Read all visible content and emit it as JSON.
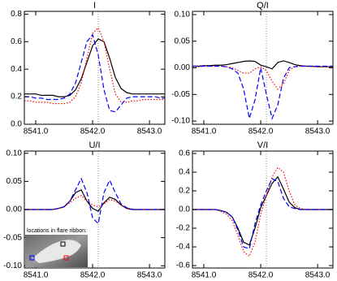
{
  "chart_data": [
    {
      "type": "line",
      "title": "I",
      "x": [
        8540.8,
        8540.9,
        8541.0,
        8541.1,
        8541.2,
        8541.3,
        8541.4,
        8541.5,
        8541.6,
        8541.7,
        8541.8,
        8541.9,
        8542.0,
        8542.1,
        8542.2,
        8542.3,
        8542.4,
        8542.5,
        8542.6,
        8542.7,
        8542.8,
        8542.9,
        8543.0,
        8543.1,
        8543.2,
        8543.3
      ],
      "series": [
        {
          "color": "#000000",
          "dash": "solid",
          "values": [
            0.22,
            0.22,
            0.22,
            0.21,
            0.21,
            0.21,
            0.2,
            0.2,
            0.21,
            0.25,
            0.33,
            0.45,
            0.57,
            0.62,
            0.6,
            0.48,
            0.34,
            0.26,
            0.23,
            0.22,
            0.22,
            0.22,
            0.22,
            0.22,
            0.22,
            0.22
          ]
        },
        {
          "color": "#ff0000",
          "dash": "dotted",
          "values": [
            0.17,
            0.17,
            0.16,
            0.16,
            0.16,
            0.15,
            0.15,
            0.15,
            0.16,
            0.2,
            0.3,
            0.48,
            0.66,
            0.7,
            0.6,
            0.4,
            0.22,
            0.16,
            0.16,
            0.17,
            0.17,
            0.18,
            0.18,
            0.18,
            0.18,
            0.18
          ]
        },
        {
          "color": "#0000ff",
          "dash": "dashed",
          "values": [
            0.2,
            0.2,
            0.19,
            0.19,
            0.18,
            0.18,
            0.18,
            0.19,
            0.22,
            0.3,
            0.45,
            0.6,
            0.65,
            0.5,
            0.25,
            0.1,
            0.09,
            0.14,
            0.19,
            0.2,
            0.2,
            0.2,
            0.2,
            0.2,
            0.19,
            0.19
          ]
        }
      ],
      "xlim": [
        8540.8,
        8543.27
      ],
      "xticks": [
        {
          "value": 8541,
          "label": "8541.0"
        },
        {
          "value": 8542,
          "label": "8542.0"
        },
        {
          "value": 8543,
          "label": "8543.0"
        }
      ],
      "ylim": [
        0,
        0.82
      ],
      "yticks": [
        {
          "value": 0,
          "label": "0.0"
        },
        {
          "value": 0.2,
          "label": "0.2"
        },
        {
          "value": 0.4,
          "label": "0.4"
        },
        {
          "value": 0.6,
          "label": "0.6"
        },
        {
          "value": 0.8,
          "label": "0.8"
        }
      ],
      "vline": 8542.1
    },
    {
      "type": "line",
      "title": "Q/I",
      "x": [
        8540.8,
        8540.9,
        8541.0,
        8541.1,
        8541.2,
        8541.3,
        8541.4,
        8541.5,
        8541.6,
        8541.7,
        8541.8,
        8541.9,
        8542.0,
        8542.1,
        8542.2,
        8542.3,
        8542.4,
        8542.5,
        8542.6,
        8542.7,
        8542.8,
        8542.9,
        8543.0,
        8543.1,
        8543.2,
        8543.3
      ],
      "series": [
        {
          "color": "#000000",
          "dash": "solid",
          "values": [
            0.003,
            0.003,
            0.004,
            0.004,
            0.005,
            0.005,
            0.006,
            0.008,
            0.01,
            0.012,
            0.013,
            0.012,
            0.005,
            0.002,
            -0.002,
            0.01,
            0.013,
            0.01,
            0.006,
            0.004,
            0.003,
            0.003,
            0.002,
            0.002,
            0.002,
            0.002
          ]
        },
        {
          "color": "#ff0000",
          "dash": "dotted",
          "values": [
            0.002,
            0.002,
            0.003,
            0.003,
            0.003,
            0.003,
            0.002,
            0.0,
            -0.005,
            -0.01,
            -0.01,
            -0.002,
            0.002,
            -0.005,
            -0.025,
            -0.04,
            -0.03,
            -0.005,
            0.003,
            0.003,
            0.003,
            0.002,
            0.002,
            0.002,
            0.002,
            0.002
          ]
        },
        {
          "color": "#0000ff",
          "dash": "dashed",
          "values": [
            0.003,
            0.003,
            0.003,
            0.003,
            0.003,
            0.003,
            0.002,
            -0.002,
            -0.01,
            -0.04,
            -0.095,
            -0.06,
            0.0,
            -0.05,
            -0.095,
            -0.07,
            -0.02,
            0.0,
            0.002,
            0.003,
            0.003,
            0.003,
            0.003,
            0.003,
            0.003,
            0.003
          ]
        }
      ],
      "xlim": [
        8540.8,
        8543.27
      ],
      "xticks": [
        {
          "value": 8541,
          "label": "8541.0"
        },
        {
          "value": 8542,
          "label": "8542.0"
        },
        {
          "value": 8543,
          "label": "8543.0"
        }
      ],
      "ylim": [
        -0.106,
        0.106
      ],
      "yticks": [
        {
          "value": 0.1,
          "label": "0.10"
        },
        {
          "value": 0.05,
          "label": "0.05"
        },
        {
          "value": 0,
          "label": "0.00"
        },
        {
          "value": -0.05,
          "label": "-0.05"
        },
        {
          "value": -0.1,
          "label": "-0.10"
        }
      ],
      "vline": 8542.1
    },
    {
      "type": "line",
      "title": "U/I",
      "annotation": "locations in flare ribbon:",
      "x": [
        8540.8,
        8540.9,
        8541.0,
        8541.1,
        8541.2,
        8541.3,
        8541.4,
        8541.5,
        8541.6,
        8541.7,
        8541.8,
        8541.9,
        8542.0,
        8542.1,
        8542.2,
        8542.3,
        8542.4,
        8542.5,
        8542.6,
        8542.7,
        8542.8,
        8542.9,
        8543.0,
        8543.1,
        8543.2,
        8543.3
      ],
      "series": [
        {
          "color": "#000000",
          "dash": "solid",
          "values": [
            0,
            0,
            0,
            0,
            0,
            0,
            0.002,
            0.005,
            0.015,
            0.03,
            0.035,
            0.015,
            0.002,
            -0.003,
            0.012,
            0.022,
            0.018,
            0.008,
            0.002,
            0,
            0,
            0,
            0,
            0,
            0,
            0
          ]
        },
        {
          "color": "#ff0000",
          "dash": "dotted",
          "values": [
            0,
            0,
            0,
            0,
            0,
            0,
            0.002,
            0.005,
            0.012,
            0.02,
            0.025,
            0.015,
            0.008,
            0.005,
            0.01,
            0.018,
            0.015,
            0.008,
            0.003,
            0.001,
            0,
            0,
            0,
            0,
            0,
            0
          ]
        },
        {
          "color": "#0000ff",
          "dash": "dashed",
          "values": [
            0,
            0,
            0,
            0,
            0,
            0,
            0.002,
            0.005,
            0.015,
            0.035,
            0.055,
            0.03,
            -0.015,
            -0.025,
            0.03,
            0.052,
            0.03,
            0.01,
            0.003,
            0,
            0,
            0,
            0,
            0,
            0,
            0
          ]
        }
      ],
      "xlim": [
        8540.8,
        8543.27
      ],
      "xticks": [
        {
          "value": 8541,
          "label": "8541.0"
        },
        {
          "value": 8542,
          "label": "8542.0"
        },
        {
          "value": 8543,
          "label": "8543.0"
        }
      ],
      "ylim": [
        -0.104,
        0.104
      ],
      "yticks": [
        {
          "value": 0.1,
          "label": "0.10"
        },
        {
          "value": 0.05,
          "label": "0.05"
        },
        {
          "value": 0,
          "label": "0.00"
        },
        {
          "value": -0.05,
          "label": "-0.05"
        },
        {
          "value": -0.1,
          "label": "-0.10"
        }
      ],
      "vline": 8542.1
    },
    {
      "type": "line",
      "title": "V/I",
      "x": [
        8540.8,
        8540.9,
        8541.0,
        8541.1,
        8541.2,
        8541.3,
        8541.4,
        8541.5,
        8541.6,
        8541.7,
        8541.8,
        8541.9,
        8542.0,
        8542.1,
        8542.2,
        8542.3,
        8542.4,
        8542.5,
        8542.6,
        8542.7,
        8542.8,
        8542.9,
        8543.0,
        8543.1,
        8543.2,
        8543.3
      ],
      "series": [
        {
          "color": "#000000",
          "dash": "solid",
          "values": [
            0,
            0,
            0,
            0,
            0,
            -0.01,
            -0.03,
            -0.08,
            -0.2,
            -0.35,
            -0.38,
            -0.2,
            0.02,
            0.15,
            0.28,
            0.35,
            0.22,
            0.08,
            0.02,
            0,
            0,
            0,
            0,
            0,
            0,
            0
          ]
        },
        {
          "color": "#ff0000",
          "dash": "dotted",
          "values": [
            0,
            0,
            0,
            0,
            0,
            -0.02,
            -0.05,
            -0.12,
            -0.28,
            -0.45,
            -0.5,
            -0.35,
            -0.05,
            0.15,
            0.35,
            0.45,
            0.4,
            0.2,
            0.05,
            0.01,
            0,
            0,
            0,
            0,
            0,
            0
          ]
        },
        {
          "color": "#0000ff",
          "dash": "dashed",
          "values": [
            0,
            0,
            0,
            0,
            0,
            -0.01,
            -0.03,
            -0.08,
            -0.22,
            -0.4,
            -0.42,
            -0.15,
            0.05,
            0.2,
            0.33,
            0.3,
            0.12,
            0.03,
            0.01,
            0,
            0,
            0,
            0,
            0,
            0,
            0
          ]
        }
      ],
      "xlim": [
        8540.8,
        8543.27
      ],
      "xticks": [
        {
          "value": 8541,
          "label": "8541.0"
        },
        {
          "value": 8542,
          "label": "8542.0"
        },
        {
          "value": 8543,
          "label": "8543.0"
        }
      ],
      "ylim": [
        -0.626,
        0.626
      ],
      "yticks": [
        {
          "value": 0.6,
          "label": "0.6"
        },
        {
          "value": 0.4,
          "label": "0.4"
        },
        {
          "value": 0.2,
          "label": "0.2"
        },
        {
          "value": 0,
          "label": "0.0"
        },
        {
          "value": -0.2,
          "label": "-0.2"
        },
        {
          "value": -0.4,
          "label": "-0.4"
        },
        {
          "value": -0.6,
          "label": "-0.6"
        }
      ],
      "vline": 8542.1
    }
  ]
}
